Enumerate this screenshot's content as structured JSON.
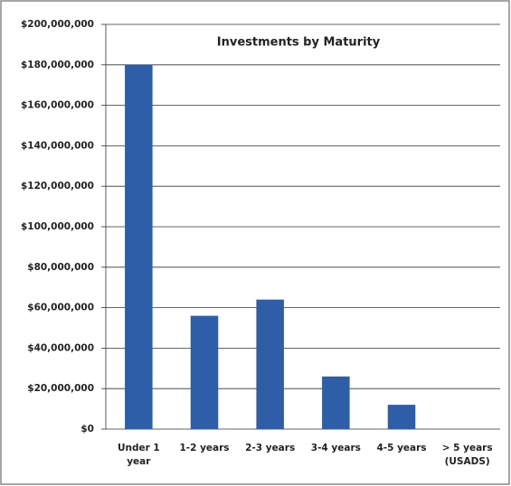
{
  "chart_data": {
    "type": "bar",
    "title": "Investments by Maturity",
    "categories": [
      "Under 1 year",
      "1-2 years",
      "2-3 years",
      "3-4 years",
      "4-5 years",
      "> 5 years (USADS)"
    ],
    "values": [
      180000000,
      56000000,
      64000000,
      26000000,
      12000000,
      0
    ],
    "color": "#2e5ea8",
    "ylim": [
      0,
      200000000
    ],
    "yticks": [
      {
        "value": 0,
        "label": "$0"
      },
      {
        "value": 20000000,
        "label": "$20,000,000"
      },
      {
        "value": 40000000,
        "label": "$40,000,000"
      },
      {
        "value": 60000000,
        "label": "$60,000,000"
      },
      {
        "value": 80000000,
        "label": "$80,000,000"
      },
      {
        "value": 100000000,
        "label": "$100,000,000"
      },
      {
        "value": 120000000,
        "label": "$120,000,000"
      },
      {
        "value": 140000000,
        "label": "$140,000,000"
      },
      {
        "value": 160000000,
        "label": "$160,000,000"
      },
      {
        "value": 180000000,
        "label": "$180,000,000"
      },
      {
        "value": 200000000,
        "label": "$200,000,000"
      }
    ],
    "grid": true
  }
}
